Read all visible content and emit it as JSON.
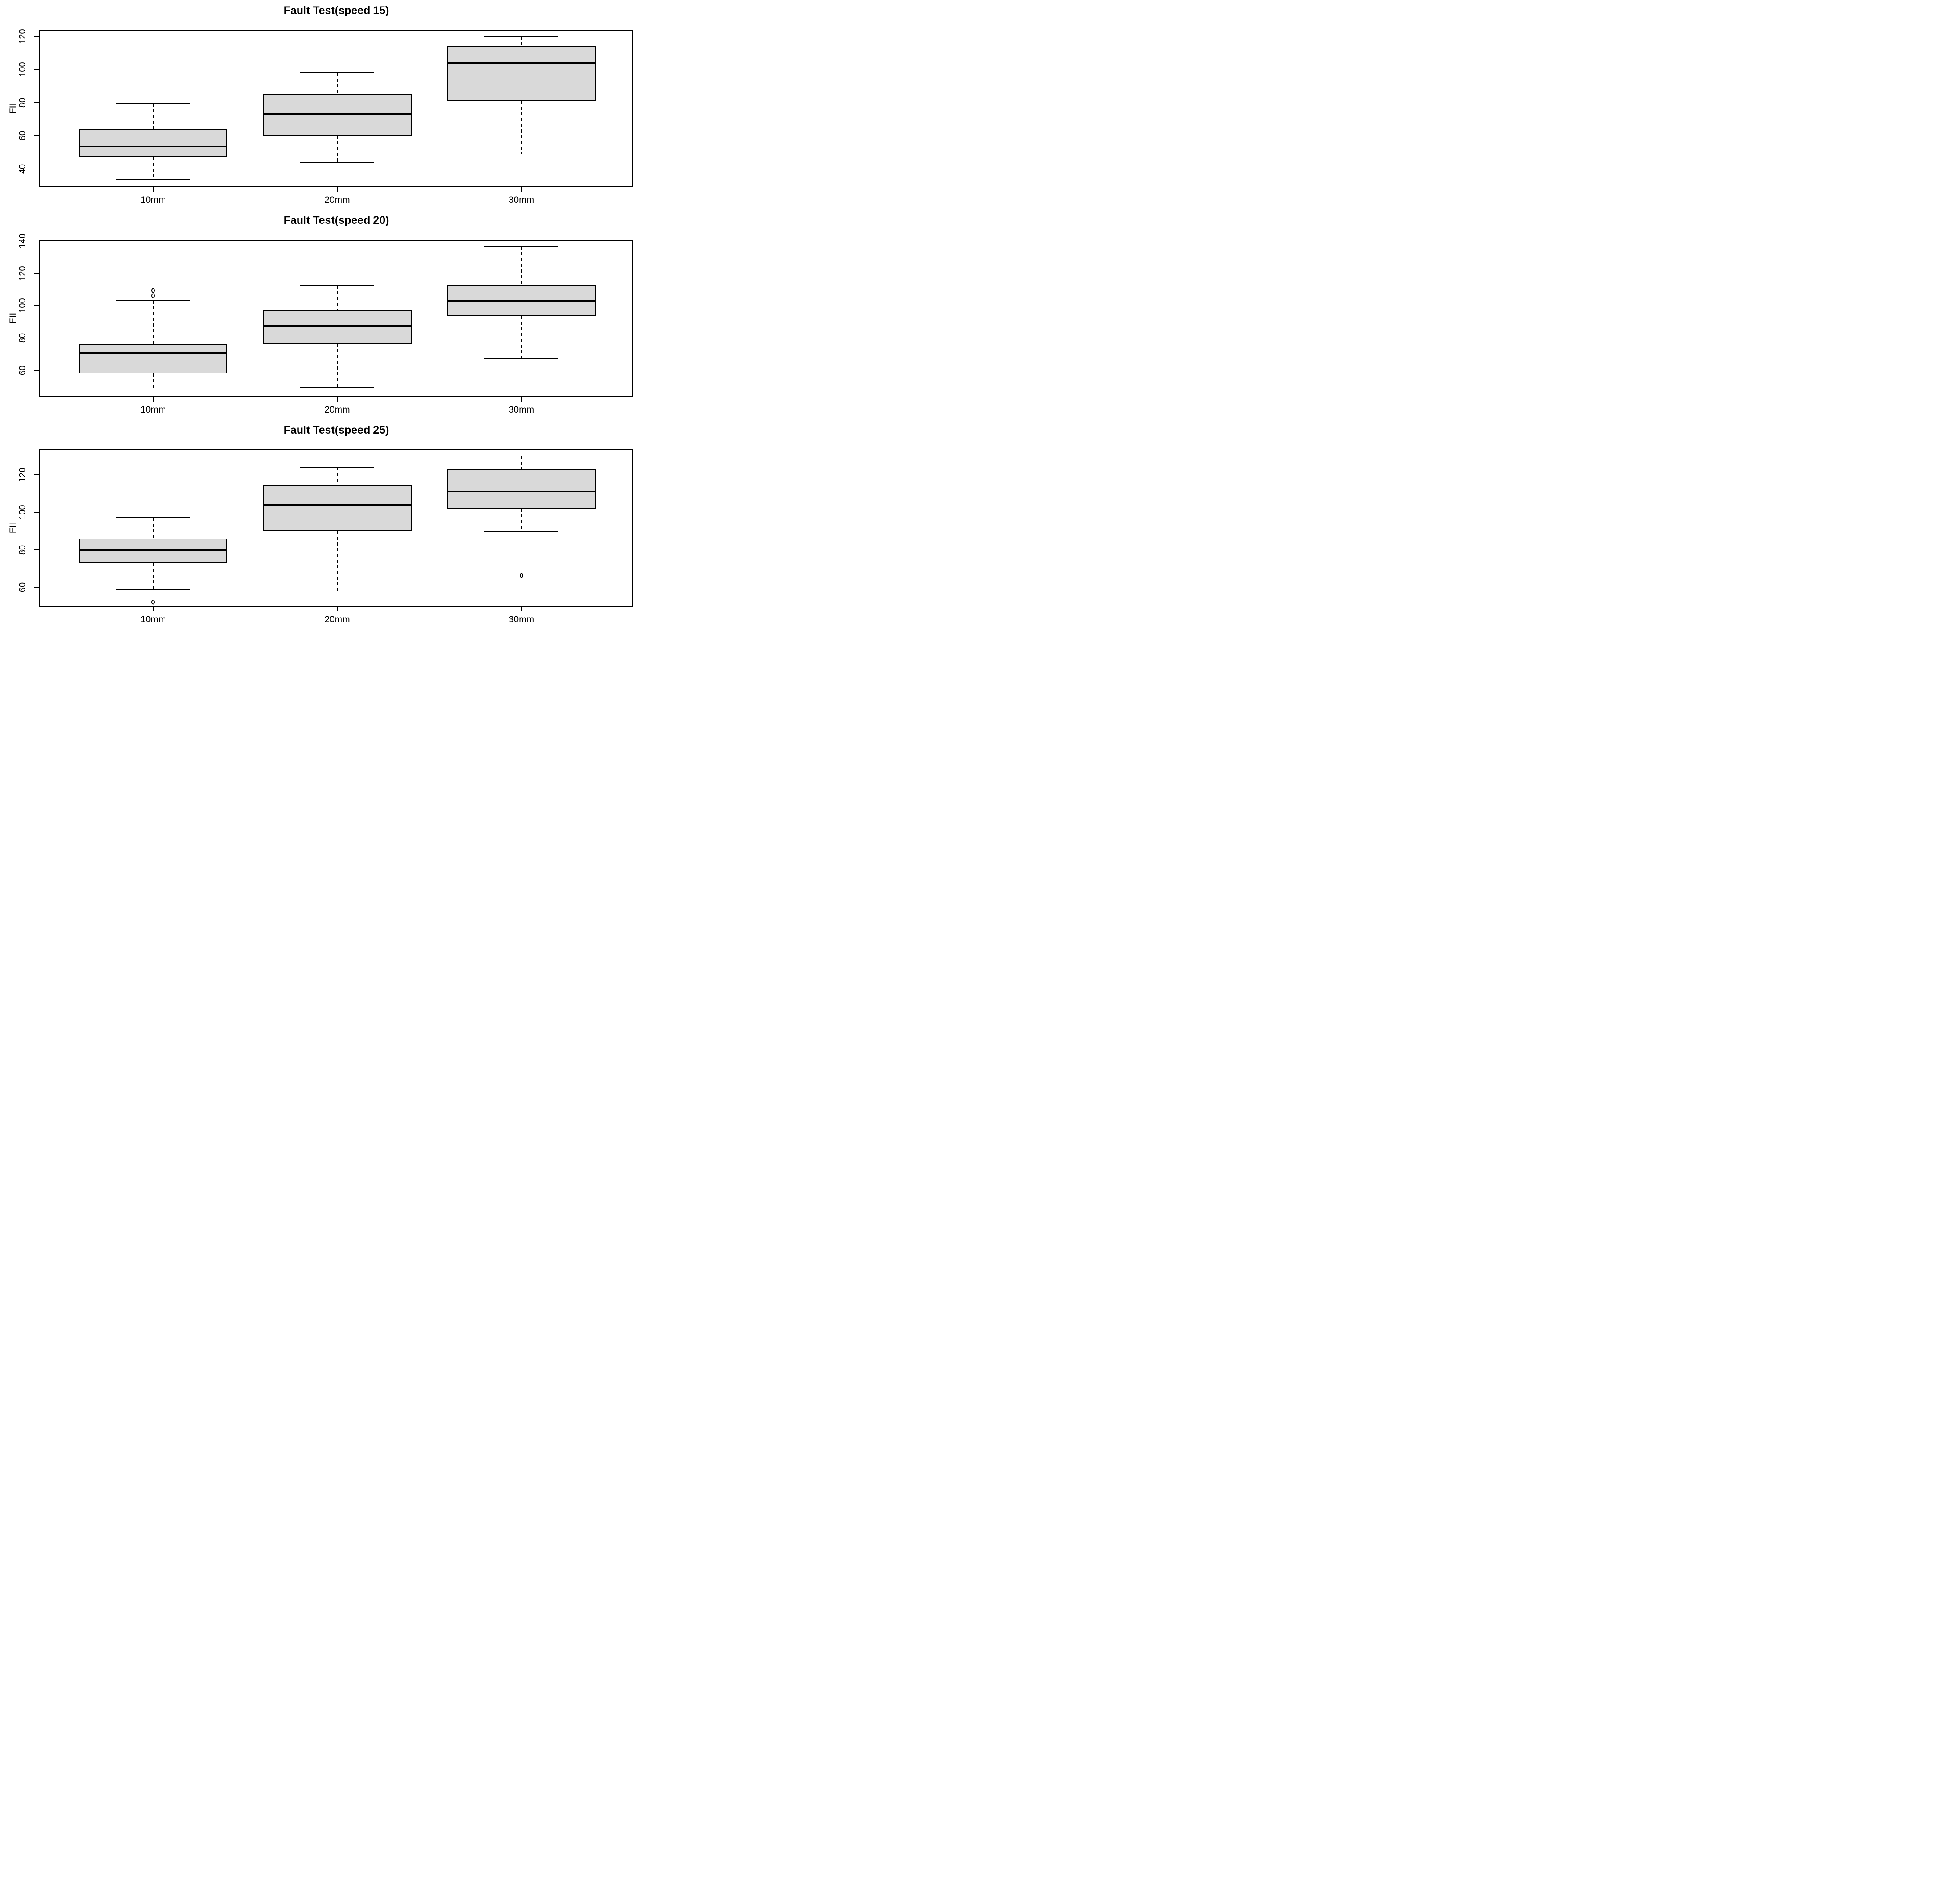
{
  "figure": {
    "background": "#ffffff",
    "text_color": "#000000",
    "box_fill_color": "#d9d9d9",
    "line_color": "#000000"
  },
  "chart_data": [
    {
      "type": "boxplot",
      "title": "Fault Test(speed 15)",
      "ylabel": "FII",
      "categories": [
        "10mm",
        "20mm",
        "30mm"
      ],
      "yticks": [
        40,
        60,
        80,
        100,
        120
      ],
      "ylim": [
        28.5,
        123.4
      ],
      "grid": false,
      "series": [
        {
          "category": "10mm",
          "whisker_low": 33.5,
          "q1": 47,
          "median": 53.5,
          "q3": 64,
          "whisker_high": 79.5,
          "outliers": []
        },
        {
          "category": "20mm",
          "whisker_low": 44,
          "q1": 60,
          "median": 73,
          "q3": 85,
          "whisker_high": 98,
          "outliers": []
        },
        {
          "category": "30mm",
          "whisker_low": 49,
          "q1": 81,
          "median": 104,
          "q3": 114,
          "whisker_high": 120,
          "outliers": []
        }
      ]
    },
    {
      "type": "boxplot",
      "title": "Fault Test(speed 20)",
      "ylabel": "FII",
      "categories": [
        "10mm",
        "20mm",
        "30mm"
      ],
      "yticks": [
        60,
        80,
        100,
        120,
        140
      ],
      "ylim": [
        43,
        140.4
      ],
      "grid": false,
      "series": [
        {
          "category": "10mm",
          "whisker_low": 47,
          "q1": 58,
          "median": 70.5,
          "q3": 76.5,
          "whisker_high": 103,
          "outliers": [
            106,
            109.5
          ]
        },
        {
          "category": "20mm",
          "whisker_low": 49.5,
          "q1": 76.5,
          "median": 87.5,
          "q3": 97.5,
          "whisker_high": 112.5,
          "outliers": []
        },
        {
          "category": "30mm",
          "whisker_low": 67.5,
          "q1": 93.5,
          "median": 103,
          "q3": 113,
          "whisker_high": 136.5,
          "outliers": []
        }
      ]
    },
    {
      "type": "boxplot",
      "title": "Fault Test(speed 25)",
      "ylabel": "FII",
      "categories": [
        "10mm",
        "20mm",
        "30mm"
      ],
      "yticks": [
        60,
        80,
        100,
        120
      ],
      "ylim": [
        49.3,
        133.1
      ],
      "grid": false,
      "series": [
        {
          "category": "10mm",
          "whisker_low": 59,
          "q1": 73,
          "median": 80,
          "q3": 86,
          "whisker_high": 97,
          "outliers": [
            52
          ]
        },
        {
          "category": "20mm",
          "whisker_low": 57,
          "q1": 90,
          "median": 104,
          "q3": 114.5,
          "whisker_high": 124,
          "outliers": []
        },
        {
          "category": "30mm",
          "whisker_low": 90,
          "q1": 102,
          "median": 111,
          "q3": 123,
          "whisker_high": 130,
          "outliers": [
            66.5
          ]
        }
      ]
    }
  ]
}
